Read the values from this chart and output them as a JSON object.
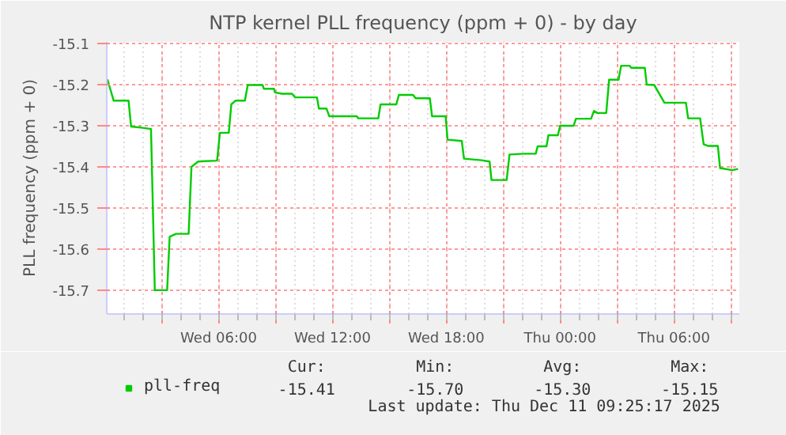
{
  "chart_data": {
    "type": "line",
    "title": "NTP kernel PLL frequency (ppm + 0) - by day",
    "ylabel": "PLL frequency (ppm + 0)",
    "series": [
      {
        "name": "pll-freq",
        "color": "#00cc00",
        "x": [
          "2025-12-10T00:08",
          "2025-12-10T00:28",
          "2025-12-10T01:15",
          "2025-12-10T01:23",
          "2025-12-10T02:00",
          "2025-12-10T02:26",
          "2025-12-10T02:38",
          "2025-12-10T03:17",
          "2025-12-10T03:25",
          "2025-12-10T03:45",
          "2025-12-10T04:25",
          "2025-12-10T04:34",
          "2025-12-10T04:55",
          "2025-12-10T05:55",
          "2025-12-10T06:04",
          "2025-12-10T06:32",
          "2025-12-10T06:40",
          "2025-12-10T06:53",
          "2025-12-10T07:23",
          "2025-12-10T07:32",
          "2025-12-10T08:19",
          "2025-12-10T08:23",
          "2025-12-10T08:55",
          "2025-12-10T08:58",
          "2025-12-10T09:20",
          "2025-12-10T09:52",
          "2025-12-10T10:02",
          "2025-12-10T11:11",
          "2025-12-10T11:17",
          "2025-12-10T11:41",
          "2025-12-10T11:50",
          "2025-12-10T13:17",
          "2025-12-10T13:22",
          "2025-12-10T14:25",
          "2025-12-10T14:32",
          "2025-12-10T15:22",
          "2025-12-10T15:30",
          "2025-12-10T16:15",
          "2025-12-10T16:23",
          "2025-12-10T17:08",
          "2025-12-10T17:15",
          "2025-12-10T17:58",
          "2025-12-10T18:04",
          "2025-12-10T18:49",
          "2025-12-10T18:56",
          "2025-12-10T19:52",
          "2025-12-10T20:17",
          "2025-12-10T20:23",
          "2025-12-10T21:11",
          "2025-12-10T21:20",
          "2025-12-10T22:05",
          "2025-12-10T22:43",
          "2025-12-10T22:49",
          "2025-12-10T23:17",
          "2025-12-10T23:23",
          "2025-12-10T23:53",
          "2025-12-11T00:00",
          "2025-12-11T00:43",
          "2025-12-11T00:50",
          "2025-12-11T01:38",
          "2025-12-11T01:47",
          "2025-12-11T01:58",
          "2025-12-11T02:26",
          "2025-12-11T02:35",
          "2025-12-11T03:05",
          "2025-12-11T03:13",
          "2025-12-11T03:40",
          "2025-12-11T03:45",
          "2025-12-11T04:28",
          "2025-12-11T04:34",
          "2025-12-11T04:58",
          "2025-12-11T05:30",
          "2025-12-11T06:38",
          "2025-12-11T06:45",
          "2025-12-11T07:23",
          "2025-12-11T07:34",
          "2025-12-11T07:47",
          "2025-12-11T08:19",
          "2025-12-11T08:26",
          "2025-12-11T09:04",
          "2025-12-11T09:23"
        ],
        "values": [
          -15.187,
          -15.239,
          -15.239,
          -15.302,
          -15.305,
          -15.308,
          -15.7,
          -15.7,
          -15.57,
          -15.563,
          -15.563,
          -15.4,
          -15.387,
          -15.385,
          -15.317,
          -15.317,
          -15.248,
          -15.239,
          -15.239,
          -15.201,
          -15.201,
          -15.21,
          -15.21,
          -15.219,
          -15.222,
          -15.222,
          -15.231,
          -15.231,
          -15.258,
          -15.258,
          -15.277,
          -15.277,
          -15.282,
          -15.282,
          -15.248,
          -15.248,
          -15.225,
          -15.225,
          -15.233,
          -15.233,
          -15.277,
          -15.277,
          -15.334,
          -15.337,
          -15.38,
          -15.384,
          -15.387,
          -15.432,
          -15.432,
          -15.37,
          -15.368,
          -15.368,
          -15.35,
          -15.35,
          -15.323,
          -15.323,
          -15.3,
          -15.3,
          -15.283,
          -15.283,
          -15.264,
          -15.269,
          -15.269,
          -15.188,
          -15.188,
          -15.154,
          -15.154,
          -15.159,
          -15.159,
          -15.2,
          -15.201,
          -15.244,
          -15.244,
          -15.282,
          -15.282,
          -15.345,
          -15.349,
          -15.349,
          -15.403,
          -15.408,
          -15.405
        ]
      }
    ],
    "xlim": [
      "2025-12-10T00:06",
      "2025-12-11T09:27"
    ],
    "ylim": [
      -15.758,
      -15.096
    ],
    "xticks": [
      {
        "value": "2025-12-10T03:00",
        "label": null
      },
      {
        "value": "2025-12-10T06:00",
        "label": "Wed 06:00"
      },
      {
        "value": "2025-12-10T09:00",
        "label": null
      },
      {
        "value": "2025-12-10T12:00",
        "label": "Wed 12:00"
      },
      {
        "value": "2025-12-10T15:00",
        "label": null
      },
      {
        "value": "2025-12-10T18:00",
        "label": "Wed 18:00"
      },
      {
        "value": "2025-12-10T21:00",
        "label": null
      },
      {
        "value": "2025-12-11T00:00",
        "label": "Thu 00:00"
      },
      {
        "value": "2025-12-11T03:00",
        "label": null
      },
      {
        "value": "2025-12-11T06:00",
        "label": "Thu 06:00"
      },
      {
        "value": "2025-12-11T09:00",
        "label": null
      }
    ],
    "yticks": [
      -15.7,
      -15.6,
      -15.5,
      -15.4,
      -15.3,
      -15.2,
      -15.1
    ],
    "grid": true,
    "legend": "bottom left",
    "marker": "none",
    "line_style": "solid",
    "annotations": [
      "Cur:",
      "Min:",
      "Avg:",
      "Max:",
      "-15.41",
      "-15.70",
      "-15.30",
      "-15.15",
      "Last update: Thu Dec 11 09:25:17 2025"
    ]
  }
}
